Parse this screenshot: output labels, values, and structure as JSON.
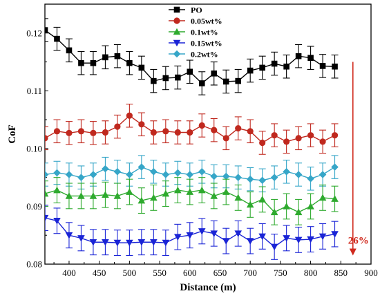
{
  "chart_data": {
    "type": "line",
    "xlabel": "Distance (m)",
    "ylabel": "CoF",
    "xlim": [
      360,
      900
    ],
    "ylim": [
      0.08,
      0.125
    ],
    "xticks": [
      400,
      450,
      500,
      550,
      600,
      650,
      700,
      750,
      800,
      850,
      900
    ],
    "yticks": [
      0.08,
      0.09,
      0.1,
      0.11,
      0.12
    ],
    "legend_position": "top-center",
    "grid": false,
    "x": [
      360,
      380,
      400,
      420,
      440,
      460,
      480,
      500,
      520,
      540,
      560,
      580,
      600,
      620,
      640,
      660,
      680,
      700,
      720,
      740,
      760,
      780,
      800,
      820,
      840
    ],
    "series": [
      {
        "name": "PO",
        "color": "#000000",
        "marker": "square",
        "values": [
          0.1205,
          0.119,
          0.117,
          0.1148,
          0.1148,
          0.1158,
          0.116,
          0.1148,
          0.114,
          0.1117,
          0.1122,
          0.1123,
          0.1133,
          0.1113,
          0.113,
          0.1116,
          0.1117,
          0.1135,
          0.114,
          0.1147,
          0.1142,
          0.116,
          0.1157,
          0.1143,
          0.1142
        ],
        "error": [
          0.002,
          0.002,
          0.002,
          0.002,
          0.002,
          0.002,
          0.002,
          0.002,
          0.002,
          0.002,
          0.002,
          0.002,
          0.002,
          0.002,
          0.002,
          0.002,
          0.002,
          0.002,
          0.002,
          0.002,
          0.002,
          0.002,
          0.002,
          0.002,
          0.002
        ]
      },
      {
        "name": "0.05wt%",
        "color": "#c0281e",
        "marker": "circle",
        "values": [
          0.1018,
          0.103,
          0.1027,
          0.103,
          0.1027,
          0.1028,
          0.1038,
          0.1057,
          0.1042,
          0.1028,
          0.103,
          0.1028,
          0.1028,
          0.104,
          0.1032,
          0.1018,
          0.1035,
          0.103,
          0.101,
          0.1023,
          0.1012,
          0.1018,
          0.1023,
          0.1012,
          0.1023
        ],
        "error": [
          0.002,
          0.002,
          0.002,
          0.002,
          0.002,
          0.002,
          0.002,
          0.002,
          0.002,
          0.002,
          0.002,
          0.002,
          0.002,
          0.002,
          0.002,
          0.002,
          0.002,
          0.002,
          0.002,
          0.002,
          0.002,
          0.002,
          0.002,
          0.002,
          0.002
        ]
      },
      {
        "name": "0.1wt%",
        "color": "#2eaa2e",
        "marker": "triangle-up",
        "values": [
          0.0922,
          0.0928,
          0.0918,
          0.0918,
          0.0918,
          0.092,
          0.0918,
          0.0925,
          0.091,
          0.0915,
          0.0922,
          0.0928,
          0.0925,
          0.0928,
          0.0918,
          0.0925,
          0.0915,
          0.0903,
          0.0912,
          0.089,
          0.09,
          0.089,
          0.09,
          0.0915,
          0.0913
        ],
        "error": [
          0.0022,
          0.0022,
          0.0022,
          0.0022,
          0.0022,
          0.0022,
          0.0022,
          0.0022,
          0.0022,
          0.0022,
          0.0022,
          0.0022,
          0.0022,
          0.0022,
          0.0022,
          0.0022,
          0.0022,
          0.0022,
          0.0022,
          0.0022,
          0.0022,
          0.0022,
          0.0022,
          0.0022,
          0.0022
        ]
      },
      {
        "name": "0.15wt%",
        "color": "#1a24d6",
        "marker": "triangle-down",
        "values": [
          0.088,
          0.0875,
          0.085,
          0.0845,
          0.0838,
          0.0838,
          0.0837,
          0.0837,
          0.0838,
          0.0838,
          0.0837,
          0.0847,
          0.085,
          0.0857,
          0.0853,
          0.084,
          0.0853,
          0.084,
          0.0848,
          0.083,
          0.0845,
          0.0842,
          0.0843,
          0.0848,
          0.0852
        ],
        "error": [
          0.0022,
          0.0022,
          0.0022,
          0.0022,
          0.0022,
          0.0022,
          0.0022,
          0.0022,
          0.0022,
          0.0022,
          0.0022,
          0.0022,
          0.0022,
          0.0022,
          0.0022,
          0.0022,
          0.0022,
          0.0022,
          0.0022,
          0.0022,
          0.0022,
          0.0022,
          0.0022,
          0.0022,
          0.0022
        ]
      },
      {
        "name": "0.2wt%",
        "color": "#36a6c8",
        "marker": "diamond",
        "values": [
          0.0955,
          0.0958,
          0.0955,
          0.095,
          0.0955,
          0.0965,
          0.096,
          0.0955,
          0.0968,
          0.096,
          0.0955,
          0.0958,
          0.0955,
          0.096,
          0.0952,
          0.0952,
          0.095,
          0.0947,
          0.0945,
          0.095,
          0.096,
          0.0955,
          0.0948,
          0.0955,
          0.0968
        ],
        "error": [
          0.002,
          0.002,
          0.002,
          0.002,
          0.002,
          0.002,
          0.002,
          0.002,
          0.002,
          0.002,
          0.002,
          0.002,
          0.002,
          0.002,
          0.002,
          0.002,
          0.002,
          0.002,
          0.002,
          0.002,
          0.002,
          0.002,
          0.002,
          0.002,
          0.002
        ]
      }
    ],
    "annotation": {
      "text": "26%",
      "color": "#d02a1e",
      "arrow": "down",
      "x_from": 870,
      "y_from": 0.115,
      "x_to": 870,
      "y_to": 0.0815
    }
  }
}
